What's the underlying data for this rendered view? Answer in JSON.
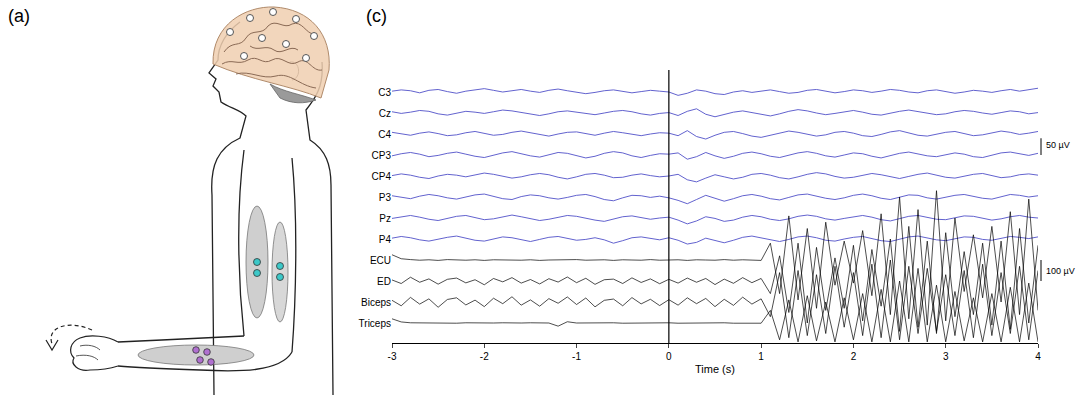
{
  "panel_labels": [
    "(a)",
    "(c)"
  ],
  "chart_data": {
    "type": "line",
    "x_label": "Time (s)",
    "xlim": [
      -3,
      4
    ],
    "xticks": [
      -3,
      -2,
      -1,
      0,
      1,
      2,
      3,
      4
    ],
    "grid": false,
    "event_x": 0,
    "x": [
      -3,
      -2.9,
      -2.8,
      -2.7,
      -2.6,
      -2.5,
      -2.4,
      -2.3,
      -2.2,
      -2.1,
      -2,
      -1.9,
      -1.8,
      -1.7,
      -1.6,
      -1.5,
      -1.4,
      -1.3,
      -1.2,
      -1.1,
      -1,
      -0.9,
      -0.8,
      -0.7,
      -0.6,
      -0.5,
      -0.4,
      -0.3,
      -0.2,
      -0.1,
      0,
      0.1,
      0.2,
      0.3,
      0.4,
      0.5,
      0.6,
      0.7,
      0.8,
      0.9,
      1,
      1.1,
      1.2,
      1.3,
      1.4,
      1.5,
      1.6,
      1.7,
      1.8,
      1.9,
      2,
      2.1,
      2.2,
      2.3,
      2.4,
      2.5,
      2.6,
      2.7,
      2.8,
      2.9,
      3,
      3.1,
      3.2,
      3.3,
      3.4,
      3.5,
      3.6,
      3.7,
      3.8,
      3.9,
      4
    ],
    "series": [
      {
        "name": "C3",
        "color": "#5050c8",
        "ylim": [
          -40,
          40
        ],
        "scale": 50,
        "yticks": [
          {
            "value": 0,
            "label": "C3"
          }
        ],
        "values": [
          2,
          5,
          3,
          -2,
          4,
          6,
          1,
          -3,
          2,
          5,
          8,
          4,
          0,
          3,
          6,
          2,
          -1,
          4,
          7,
          3,
          0,
          -4,
          -1,
          3,
          5,
          2,
          -2,
          1,
          4,
          2,
          0,
          -8,
          -3,
          5,
          2,
          -4,
          -6,
          0,
          3,
          -1,
          2,
          5,
          1,
          -3,
          -1,
          4,
          6,
          2,
          -2,
          1,
          5,
          3,
          -1,
          2,
          6,
          4,
          0,
          -2,
          3,
          5,
          1,
          -3,
          0,
          4,
          2,
          -1,
          3,
          6,
          2,
          5,
          9
        ]
      },
      {
        "name": "Cz",
        "color": "#5050c8",
        "ylim": [
          -40,
          40
        ],
        "scale": 50,
        "yticks": [
          {
            "value": 0,
            "label": "Cz"
          }
        ],
        "values": [
          3,
          -1,
          2,
          6,
          4,
          -2,
          -5,
          0,
          4,
          2,
          -1,
          3,
          7,
          5,
          1,
          -3,
          -6,
          -2,
          3,
          5,
          2,
          -1,
          -4,
          0,
          4,
          6,
          3,
          -2,
          -5,
          -1,
          1,
          -6,
          4,
          10,
          -3,
          -9,
          -4,
          2,
          5,
          1,
          -3,
          -7,
          -2,
          4,
          8,
          5,
          0,
          -4,
          -1,
          3,
          6,
          2,
          -3,
          -5,
          0,
          4,
          7,
          3,
          -1,
          -4,
          -2,
          3,
          6,
          4,
          0,
          -3,
          1,
          5,
          3,
          -2,
          1
        ]
      },
      {
        "name": "C4",
        "color": "#5050c8",
        "ylim": [
          -40,
          40
        ],
        "scale": 50,
        "yticks": [
          {
            "value": 0,
            "label": "C4"
          }
        ],
        "values": [
          4,
          0,
          -3,
          2,
          5,
          1,
          -4,
          -2,
          3,
          6,
          2,
          -3,
          -1,
          4,
          7,
          3,
          -2,
          -5,
          0,
          4,
          5,
          1,
          -3,
          2,
          6,
          3,
          -1,
          -4,
          0,
          3,
          2,
          -4,
          8,
          -6,
          -12,
          -3,
          4,
          6,
          1,
          -5,
          -8,
          -3,
          3,
          7,
          4,
          -1,
          -5,
          -2,
          4,
          6,
          2,
          -4,
          -6,
          -1,
          5,
          8,
          3,
          -3,
          -5,
          0,
          4,
          6,
          1,
          -4,
          -2,
          3,
          7,
          4,
          -1,
          2,
          6
        ]
      },
      {
        "name": "CP3",
        "color": "#5050c8",
        "ylim": [
          -40,
          40
        ],
        "scale": 50,
        "yticks": [
          {
            "value": 0,
            "label": "CP3"
          }
        ],
        "values": [
          -2,
          3,
          6,
          2,
          -4,
          -1,
          4,
          7,
          2,
          -3,
          -6,
          -1,
          5,
          8,
          3,
          -2,
          -5,
          0,
          6,
          4,
          -1,
          -7,
          -3,
          4,
          8,
          5,
          -2,
          -6,
          -1,
          3,
          2,
          5,
          -10,
          -4,
          6,
          -2,
          -8,
          -3,
          4,
          7,
          3,
          -3,
          -6,
          -1,
          5,
          8,
          4,
          -2,
          -5,
          0,
          5,
          3,
          -3,
          -7,
          -2,
          4,
          7,
          3,
          -2,
          -4,
          1,
          5,
          2,
          -4,
          -6,
          0,
          5,
          7,
          3,
          -1,
          4
        ]
      },
      {
        "name": "CP4",
        "color": "#5050c8",
        "ylim": [
          -40,
          40
        ],
        "scale": 50,
        "yticks": [
          {
            "value": 0,
            "label": "CP4"
          }
        ],
        "values": [
          1,
          5,
          2,
          -3,
          -6,
          0,
          4,
          2,
          -2,
          3,
          7,
          4,
          -1,
          -5,
          -2,
          3,
          6,
          3,
          -3,
          -7,
          -2,
          4,
          6,
          2,
          -4,
          -3,
          2,
          5,
          1,
          -2,
          0,
          4,
          -9,
          -14,
          -5,
          3,
          -2,
          -7,
          -3,
          4,
          6,
          2,
          -4,
          -7,
          -2,
          4,
          8,
          5,
          -1,
          -5,
          -3,
          2,
          6,
          3,
          -2,
          -6,
          -1,
          4,
          7,
          2,
          -3,
          -5,
          0,
          4,
          6,
          1,
          -4,
          -2,
          3,
          5,
          2
        ]
      },
      {
        "name": "P3",
        "color": "#5050c8",
        "ylim": [
          -40,
          40
        ],
        "scale": 50,
        "yticks": [
          {
            "value": 0,
            "label": "P3"
          }
        ],
        "values": [
          3,
          -1,
          -4,
          2,
          6,
          3,
          -2,
          -5,
          0,
          5,
          7,
          2,
          -4,
          -6,
          1,
          5,
          3,
          -2,
          -5,
          -1,
          4,
          6,
          1,
          -6,
          -9,
          -2,
          4,
          3,
          -1,
          2,
          -2,
          -8,
          -16,
          -6,
          4,
          -3,
          -10,
          -4,
          3,
          6,
          2,
          -4,
          -7,
          -1,
          5,
          7,
          2,
          -3,
          -6,
          -2,
          4,
          7,
          3,
          -3,
          -6,
          0,
          5,
          4,
          -2,
          -5,
          0,
          4,
          6,
          2,
          -3,
          -5,
          1,
          6,
          4,
          0,
          3
        ]
      },
      {
        "name": "Pz",
        "color": "#5050c8",
        "ylim": [
          -40,
          40
        ],
        "scale": 50,
        "yticks": [
          {
            "value": 0,
            "label": "Pz"
          }
        ],
        "values": [
          -1,
          3,
          6,
          2,
          -3,
          -6,
          -1,
          4,
          6,
          1,
          -4,
          -2,
          3,
          7,
          3,
          -2,
          -6,
          -3,
          2,
          6,
          4,
          -1,
          -5,
          -8,
          -3,
          3,
          5,
          1,
          -3,
          0,
          2,
          -5,
          -14,
          -7,
          3,
          -1,
          -8,
          -5,
          2,
          6,
          3,
          -3,
          -6,
          -2,
          4,
          7,
          4,
          -2,
          -5,
          -1,
          3,
          6,
          2,
          -4,
          -7,
          -2,
          4,
          6,
          1,
          -3,
          -4,
          1,
          5,
          4,
          -1,
          -5,
          -2,
          3,
          6,
          2,
          0
        ]
      },
      {
        "name": "P4",
        "color": "#5050c8",
        "ylim": [
          -40,
          40
        ],
        "scale": 50,
        "yticks": [
          {
            "value": 0,
            "label": "P4"
          }
        ],
        "values": [
          2,
          6,
          3,
          -2,
          -5,
          0,
          4,
          7,
          2,
          -3,
          -5,
          0,
          5,
          3,
          -2,
          -6,
          -1,
          4,
          6,
          1,
          -3,
          -1,
          3,
          -2,
          -10,
          -4,
          3,
          5,
          1,
          -2,
          3,
          -3,
          -12,
          -8,
          2,
          -4,
          -9,
          -3,
          4,
          7,
          3,
          -2,
          -6,
          -1,
          5,
          7,
          3,
          -3,
          -5,
          0,
          4,
          6,
          1,
          -4,
          -6,
          -1,
          5,
          7,
          2,
          -2,
          -4,
          0,
          5,
          4,
          -1,
          -3,
          2,
          6,
          4,
          1,
          5
        ]
      },
      {
        "name": "ECU",
        "color": "#000000",
        "ylim": [
          -350,
          350
        ],
        "scale": 100,
        "yticks": [
          {
            "value": 0,
            "label": "ECU"
          }
        ],
        "values": [
          25,
          6,
          2,
          -1,
          1,
          -2,
          2,
          0,
          -1,
          1,
          -2,
          1,
          0,
          2,
          -1,
          1,
          -2,
          0,
          1,
          -1,
          2,
          -1,
          0,
          1,
          -2,
          1,
          0,
          -1,
          2,
          -1,
          0,
          1,
          -2,
          1,
          0,
          -1,
          2,
          -1,
          1,
          0,
          -2,
          80,
          -160,
          210,
          -190,
          150,
          -230,
          180,
          -120,
          90,
          -110,
          140,
          -170,
          220,
          -260,
          300,
          -280,
          240,
          -310,
          330,
          -290,
          200,
          -150,
          120,
          -180,
          160,
          -200,
          230,
          -260,
          290,
          -240
        ]
      },
      {
        "name": "ED",
        "color": "#000000",
        "ylim": [
          -290,
          300
        ],
        "scale": 100,
        "yticks": [
          {
            "value": 0,
            "label": "ED"
          }
        ],
        "values": [
          5,
          -12,
          18,
          -6,
          10,
          -15,
          8,
          14,
          -9,
          6,
          -18,
          12,
          -4,
          16,
          -10,
          7,
          -14,
          11,
          -5,
          19,
          -8,
          13,
          -16,
          6,
          9,
          -12,
          15,
          -7,
          10,
          -13,
          8,
          -10,
          14,
          -6,
          12,
          -17,
          9,
          -11,
          16,
          -8,
          12,
          -60,
          120,
          -150,
          180,
          -200,
          160,
          -140,
          110,
          -130,
          170,
          -190,
          150,
          -120,
          200,
          -240,
          260,
          -220,
          190,
          -250,
          230,
          -170,
          140,
          -160,
          180,
          -210,
          190,
          -230,
          250,
          -200,
          170
        ]
      },
      {
        "name": "Biceps",
        "color": "#000000",
        "ylim": [
          -190,
          300
        ],
        "scale": 100,
        "yticks": [
          {
            "value": 0,
            "label": "Biceps"
          }
        ],
        "values": [
          8,
          -18,
          22,
          -10,
          15,
          -25,
          12,
          20,
          -14,
          9,
          -22,
          18,
          -8,
          25,
          -15,
          10,
          -20,
          16,
          -6,
          24,
          -12,
          19,
          -23,
          8,
          14,
          -18,
          21,
          -9,
          13,
          -17,
          11,
          -15,
          20,
          -8,
          17,
          -22,
          13,
          -16,
          23,
          -10,
          15,
          -70,
          140,
          -170,
          150,
          -160,
          130,
          -150,
          170,
          -120,
          140,
          -160,
          180,
          -170,
          200,
          -180,
          170,
          -150,
          160,
          -140,
          130,
          -160,
          150,
          -170,
          180,
          -160,
          140,
          -150,
          170,
          -180,
          150
        ]
      },
      {
        "name": "Triceps",
        "color": "#000000",
        "ylim": [
          -90,
          350
        ],
        "scale": 100,
        "yticks": [
          {
            "value": 0,
            "label": "Triceps"
          }
        ],
        "values": [
          20,
          5,
          1,
          0,
          -1,
          1,
          0,
          -1,
          1,
          0,
          -1,
          0,
          1,
          -1,
          0,
          1,
          -1,
          0,
          -15,
          6,
          0,
          1,
          -1,
          0,
          1,
          -1,
          0,
          1,
          -1,
          0,
          1,
          -1,
          0,
          1,
          -1,
          0,
          1,
          -1,
          0,
          1,
          -1,
          60,
          -80,
          110,
          -90,
          130,
          -85,
          100,
          -90,
          120,
          -80,
          140,
          -90,
          160,
          -90,
          200,
          -90,
          260,
          -90,
          180,
          -90,
          150,
          -85,
          120,
          -90,
          140,
          -90,
          170,
          -90,
          190,
          -90
        ]
      }
    ],
    "scale_bars": [
      {
        "value": 50,
        "label": "50 µV",
        "channel": "CP3"
      },
      {
        "value": 100,
        "label": "100 µV",
        "channel": "ED"
      }
    ]
  }
}
